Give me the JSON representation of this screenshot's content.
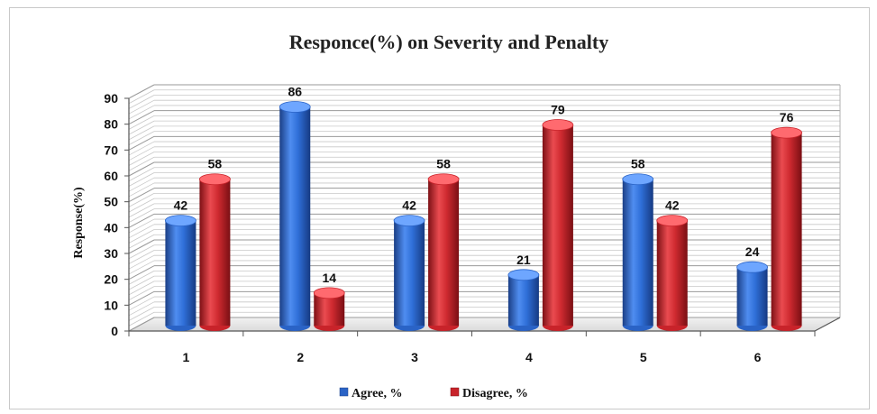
{
  "chart_data": {
    "type": "bar",
    "title": "Responce(%) on Severity and Penalty",
    "ylabel": "Response(%)",
    "xlabel": "",
    "categories": [
      "1",
      "2",
      "3",
      "4",
      "5",
      "6"
    ],
    "series": [
      {
        "name": "Agree, %",
        "values": [
          42,
          86,
          42,
          21,
          58,
          24
        ],
        "color": "#2a63c6"
      },
      {
        "name": "Disagree, %",
        "values": [
          58,
          14,
          58,
          79,
          42,
          76
        ],
        "color": "#c8232a"
      }
    ],
    "ylim": [
      0,
      90
    ],
    "yticks": [
      "0",
      "10",
      "20",
      "30",
      "40",
      "50",
      "60",
      "70",
      "80",
      "90"
    ],
    "grid": true,
    "legend_position": "bottom",
    "style": "3d-cylinder"
  }
}
